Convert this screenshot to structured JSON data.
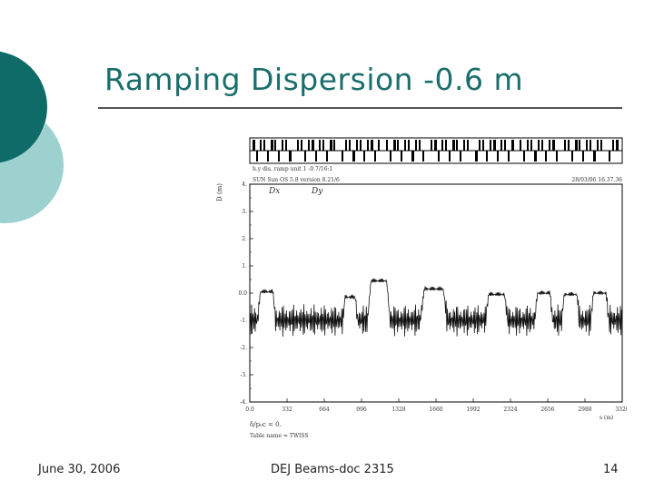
{
  "slide": {
    "title": "Ramping Dispersion  -0.6 m",
    "footer_left": "June 30, 2006",
    "footer_center": "DEJ Beams-doc 2315",
    "page_number": "14",
    "accent_dark": "#0f6b68",
    "accent_light": "#9dd1cf"
  },
  "chart_data": {
    "type": "line",
    "header_left": "SUN Sun OS 5.8 version 8.21/6",
    "header_right": "28/03/06 16.37.36",
    "top_caption": "h.y dis. ramp unit 1 -0.7/16:1",
    "ylabel": "D (m)",
    "xlabel": "s (m)",
    "legend": [
      "Dx",
      "Dy"
    ],
    "x_ticks": [
      "0.0",
      "332",
      "664",
      "996",
      "1328",
      "1660",
      "1992",
      "2324",
      "2656",
      "2988",
      "3320"
    ],
    "y_ticks": [
      "4.",
      "3.",
      "2.",
      "1.",
      "0.0",
      "-1.",
      "-2.",
      "-3.",
      "-4."
    ],
    "xlim": [
      0,
      3320
    ],
    "ylim": [
      -4,
      4
    ],
    "footnotes": [
      "δ/p₀c = 0.",
      "Table name = TWISS"
    ],
    "series": [
      {
        "name": "Dx",
        "description": "rapid oscillation between about -1.6 and -0.4 m with large positive bumps near arcs",
        "baseline": -1.0,
        "amplitude": 0.6,
        "bumps": [
          {
            "start": 70,
            "end": 230,
            "peak": 0.15
          },
          {
            "start": 830,
            "end": 960,
            "peak": -0.05
          },
          {
            "start": 1050,
            "end": 1250,
            "peak": 0.55
          },
          {
            "start": 1520,
            "end": 1760,
            "peak": 0.25
          },
          {
            "start": 2100,
            "end": 2300,
            "peak": 0.05
          },
          {
            "start": 2540,
            "end": 2700,
            "peak": 0.1
          },
          {
            "start": 2780,
            "end": 2940,
            "peak": 0.05
          },
          {
            "start": 3040,
            "end": 3200,
            "peak": 0.1
          }
        ]
      }
    ]
  }
}
